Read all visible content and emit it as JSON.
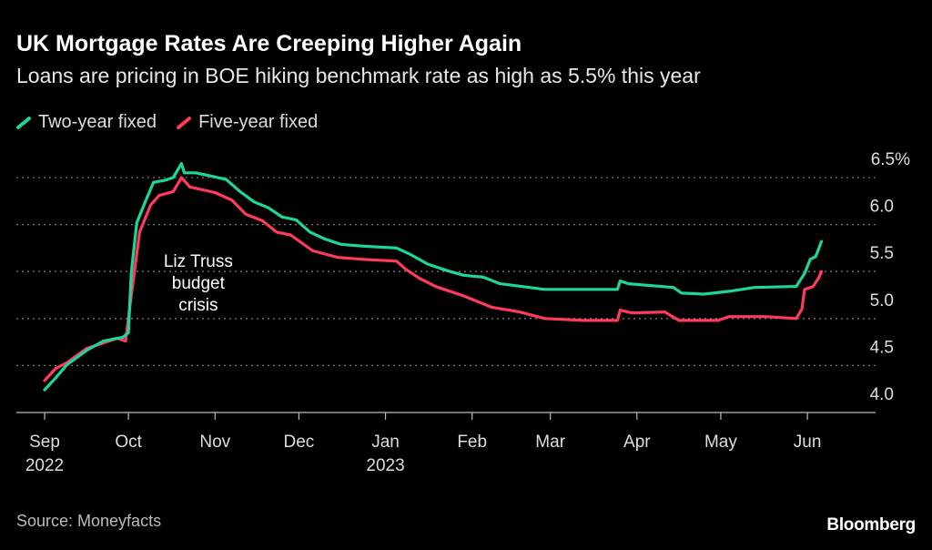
{
  "title": "UK Mortgage Rates Are Creeping Higher Again",
  "subtitle": "Loans are pricing in BOE hiking benchmark rate as high as 5.5% this year",
  "source": "Source: Moneyfacts",
  "brand": "Bloomberg",
  "chart_data": {
    "type": "line",
    "title": "UK Mortgage Rates Are Creeping Higher Again",
    "xlabel": "",
    "ylabel": "%",
    "x_unit": "days since 2022-09-01",
    "ylim": [
      4.0,
      6.5
    ],
    "y_ticks": [
      {
        "value": 4.0,
        "label": "4.0"
      },
      {
        "value": 4.5,
        "label": "4.5"
      },
      {
        "value": 5.0,
        "label": "5.0"
      },
      {
        "value": 5.5,
        "label": "5.5"
      },
      {
        "value": 6.0,
        "label": "6.0"
      },
      {
        "value": 6.5,
        "label": "6.5%"
      }
    ],
    "x_ticks": [
      {
        "day": 0,
        "label": "Sep",
        "sublabel": "2022"
      },
      {
        "day": 30,
        "label": "Oct"
      },
      {
        "day": 61,
        "label": "Nov"
      },
      {
        "day": 91,
        "label": "Dec"
      },
      {
        "day": 122,
        "label": "Jan",
        "sublabel": "2023"
      },
      {
        "day": 153,
        "label": "Feb"
      },
      {
        "day": 181,
        "label": "Mar"
      },
      {
        "day": 212,
        "label": "Apr"
      },
      {
        "day": 242,
        "label": "May"
      },
      {
        "day": 273,
        "label": "Jun"
      }
    ],
    "grid": true,
    "legend_position": "top-left",
    "annotation": {
      "day": 55,
      "value": 5.5,
      "lines": [
        "Liz Truss",
        "budget",
        "crisis"
      ]
    },
    "series": [
      {
        "name": "Two-year fixed",
        "color": "#1ed69a",
        "x": [
          0,
          4,
          8,
          15,
          21,
          26,
          28,
          30,
          31,
          33,
          36,
          39,
          43,
          46,
          48,
          49,
          50,
          54,
          59,
          65,
          70,
          75,
          80,
          85,
          90,
          95,
          100,
          106,
          114,
          126,
          131,
          137,
          144,
          150,
          157,
          163,
          171,
          179,
          193,
          205,
          206,
          209,
          225,
          228,
          236,
          245,
          254,
          267,
          269,
          272,
          274,
          276,
          278
        ],
        "values": [
          4.24,
          4.37,
          4.51,
          4.66,
          4.76,
          4.79,
          4.8,
          4.85,
          5.48,
          6.02,
          6.24,
          6.45,
          6.47,
          6.5,
          6.6,
          6.65,
          6.55,
          6.55,
          6.52,
          6.48,
          6.35,
          6.24,
          6.18,
          6.08,
          6.05,
          5.92,
          5.85,
          5.79,
          5.77,
          5.75,
          5.68,
          5.58,
          5.51,
          5.46,
          5.44,
          5.37,
          5.34,
          5.31,
          5.31,
          5.31,
          5.4,
          5.37,
          5.33,
          5.27,
          5.26,
          5.29,
          5.33,
          5.34,
          5.34,
          5.48,
          5.63,
          5.66,
          5.82
        ]
      },
      {
        "name": "Five-year fixed",
        "color": "#ff3b5c",
        "x": [
          0,
          4,
          8,
          15,
          26,
          29,
          31,
          34,
          38,
          41,
          46,
          48,
          49,
          52,
          61,
          67,
          72,
          78,
          83,
          88,
          96,
          105,
          114,
          126,
          129,
          134,
          140,
          150,
          160,
          170,
          179,
          193,
          205,
          206,
          210,
          222,
          227,
          241,
          245,
          258,
          269,
          271,
          272,
          275,
          277,
          278
        ],
        "values": [
          4.34,
          4.47,
          4.53,
          4.68,
          4.79,
          4.76,
          5.24,
          5.92,
          6.21,
          6.31,
          6.35,
          6.45,
          6.5,
          6.4,
          6.34,
          6.26,
          6.11,
          6.04,
          5.92,
          5.89,
          5.72,
          5.65,
          5.63,
          5.61,
          5.53,
          5.43,
          5.34,
          5.24,
          5.12,
          5.07,
          5.0,
          4.98,
          4.98,
          5.09,
          5.06,
          5.07,
          4.98,
          4.98,
          5.02,
          5.02,
          5.0,
          5.1,
          5.31,
          5.34,
          5.43,
          5.5
        ]
      }
    ]
  }
}
